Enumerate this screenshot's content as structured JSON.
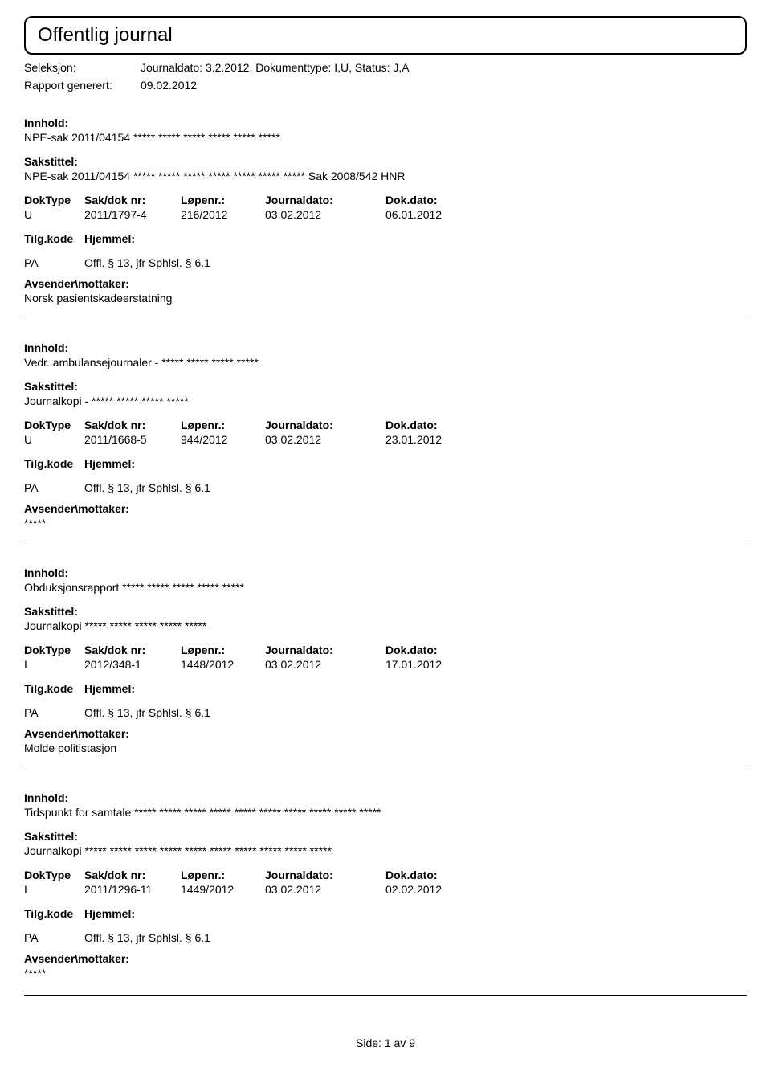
{
  "header": {
    "title": "Offentlig journal",
    "seleksjon_label": "Seleksjon:",
    "seleksjon_value": "Journaldato: 3.2.2012, Dokumenttype: I,U, Status: J,A",
    "rapport_label": "Rapport generert:",
    "rapport_value": "09.02.2012"
  },
  "labels": {
    "innhold": "Innhold:",
    "sakstittel": "Sakstittel:",
    "doktype": "DokType",
    "sakdoknr": "Sak/dok nr:",
    "lopenr": "Løpenr.:",
    "journaldato": "Journaldato:",
    "dokdato": "Dok.dato:",
    "tilgkode": "Tilg.kode",
    "hjemmel": "Hjemmel:",
    "avsender": "Avsender\\mottaker:"
  },
  "entries": [
    {
      "innhold": "NPE-sak 2011/04154 ***** ***** ***** ***** ***** *****",
      "sakstittel": "NPE-sak 2011/04154 ***** ***** ***** ***** ***** ***** ***** Sak  2008/542 HNR",
      "doktype": "U",
      "sakdoknr": "2011/1797-4",
      "lopenr": "216/2012",
      "journaldato": "03.02.2012",
      "dokdato": "06.01.2012",
      "tilgkode": "PA",
      "hjemmel": "Offl. § 13, jfr Sphlsl. § 6.1",
      "avsender": "Norsk pasientskadeerstatning"
    },
    {
      "innhold": "Vedr. ambulansejournaler - ***** ***** ***** *****",
      "sakstittel": "Journalkopi - ***** ***** ***** *****",
      "doktype": "U",
      "sakdoknr": "2011/1668-5",
      "lopenr": "944/2012",
      "journaldato": "03.02.2012",
      "dokdato": "23.01.2012",
      "tilgkode": "PA",
      "hjemmel": "Offl. § 13, jfr Sphlsl. § 6.1",
      "avsender": "*****"
    },
    {
      "innhold": "Obduksjonsrapport *****  ***** ***** ***** *****",
      "sakstittel": "Journalkopi ***** ***** ***** ***** *****",
      "doktype": "I",
      "sakdoknr": "2012/348-1",
      "lopenr": "1448/2012",
      "journaldato": "03.02.2012",
      "dokdato": "17.01.2012",
      "tilgkode": "PA",
      "hjemmel": "Offl. § 13, jfr Sphlsl. § 6.1",
      "avsender": "Molde politistasjon"
    },
    {
      "innhold": "Tidspunkt for samtale  ***** ***** ***** ***** ***** ***** ***** ***** ***** *****",
      "sakstittel": "Journalkopi ***** ***** ***** ***** ***** ***** ***** ***** ***** *****",
      "doktype": "I",
      "sakdoknr": "2011/1296-11",
      "lopenr": "1449/2012",
      "journaldato": "03.02.2012",
      "dokdato": "02.02.2012",
      "tilgkode": "PA",
      "hjemmel": "Offl. § 13, jfr Sphlsl. § 6.1",
      "avsender": "*****"
    }
  ],
  "footer": {
    "page_label": "Side:",
    "page_current": "1",
    "page_of": "av",
    "page_total": "9"
  }
}
